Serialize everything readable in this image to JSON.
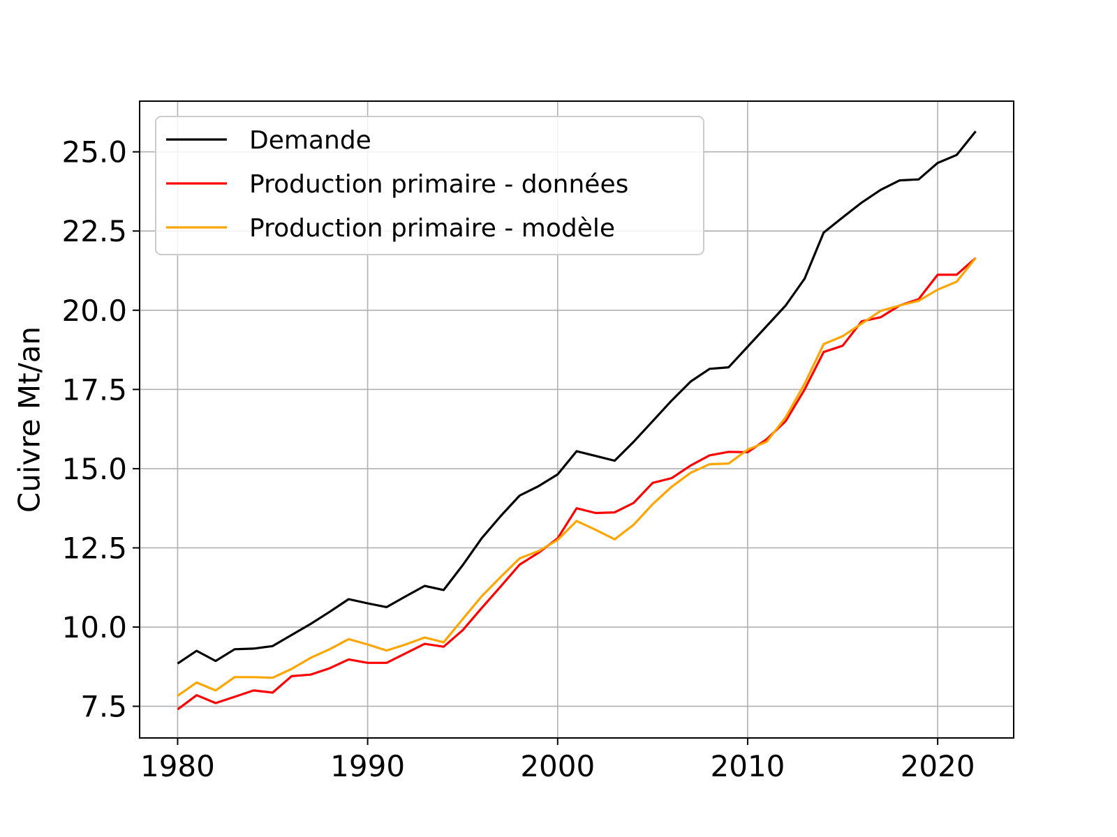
{
  "chart_data": {
    "type": "line",
    "title": "",
    "xlabel": "",
    "ylabel": "Cuivre Mt/an",
    "xlim": [
      1978,
      2024
    ],
    "ylim": [
      6.5,
      26.6
    ],
    "xticks": [
      1980,
      1990,
      2000,
      2010,
      2020
    ],
    "yticks": [
      7.5,
      10.0,
      12.5,
      15.0,
      17.5,
      20.0,
      22.5,
      25.0
    ],
    "ytick_labels": [
      "7.5",
      "10.0",
      "12.5",
      "15.0",
      "17.5",
      "20.0",
      "22.5",
      "25.0"
    ],
    "grid": true,
    "legend_position": "upper-left",
    "x": [
      1980,
      1981,
      1982,
      1983,
      1984,
      1985,
      1986,
      1987,
      1988,
      1989,
      1990,
      1991,
      1992,
      1993,
      1994,
      1995,
      1996,
      1997,
      1998,
      1999,
      2000,
      2001,
      2002,
      2003,
      2004,
      2005,
      2006,
      2007,
      2008,
      2009,
      2010,
      2011,
      2012,
      2013,
      2014,
      2015,
      2016,
      2017,
      2018,
      2019,
      2020,
      2021,
      2022
    ],
    "series": [
      {
        "name": "Demande",
        "color": "#000000",
        "values": [
          8.85,
          9.25,
          8.93,
          9.3,
          9.32,
          9.4,
          9.75,
          10.1,
          10.48,
          10.88,
          10.75,
          10.63,
          10.97,
          11.3,
          11.17,
          11.95,
          12.8,
          13.5,
          14.15,
          14.45,
          14.82,
          15.55,
          15.4,
          15.25,
          15.85,
          16.5,
          17.15,
          17.75,
          18.15,
          18.2,
          18.85,
          19.5,
          20.15,
          21.0,
          22.45,
          22.93,
          23.4,
          23.8,
          24.1,
          24.13,
          24.65,
          24.9,
          25.65
        ]
      },
      {
        "name": "Production primaire - données",
        "color": "#ff0000",
        "values": [
          7.4,
          7.85,
          7.6,
          7.8,
          8.0,
          7.93,
          8.45,
          8.5,
          8.7,
          8.98,
          8.87,
          8.87,
          9.17,
          9.47,
          9.38,
          9.9,
          10.6,
          11.28,
          11.97,
          12.35,
          12.8,
          13.75,
          13.6,
          13.62,
          13.92,
          14.55,
          14.7,
          15.1,
          15.42,
          15.53,
          15.52,
          15.93,
          16.5,
          17.5,
          18.68,
          18.88,
          19.65,
          19.78,
          20.15,
          20.35,
          21.12,
          21.12,
          21.65
        ]
      },
      {
        "name": "Production primaire - modèle",
        "color": "#ffa500",
        "values": [
          7.83,
          8.25,
          8.0,
          8.42,
          8.42,
          8.4,
          8.68,
          9.03,
          9.3,
          9.62,
          9.45,
          9.26,
          9.45,
          9.67,
          9.52,
          10.25,
          10.97,
          11.58,
          12.17,
          12.4,
          12.75,
          13.35,
          13.07,
          12.77,
          13.23,
          13.88,
          14.43,
          14.87,
          15.14,
          15.16,
          15.6,
          15.85,
          16.62,
          17.68,
          18.93,
          19.18,
          19.58,
          19.98,
          20.15,
          20.3,
          20.65,
          20.9,
          21.65
        ]
      }
    ]
  }
}
